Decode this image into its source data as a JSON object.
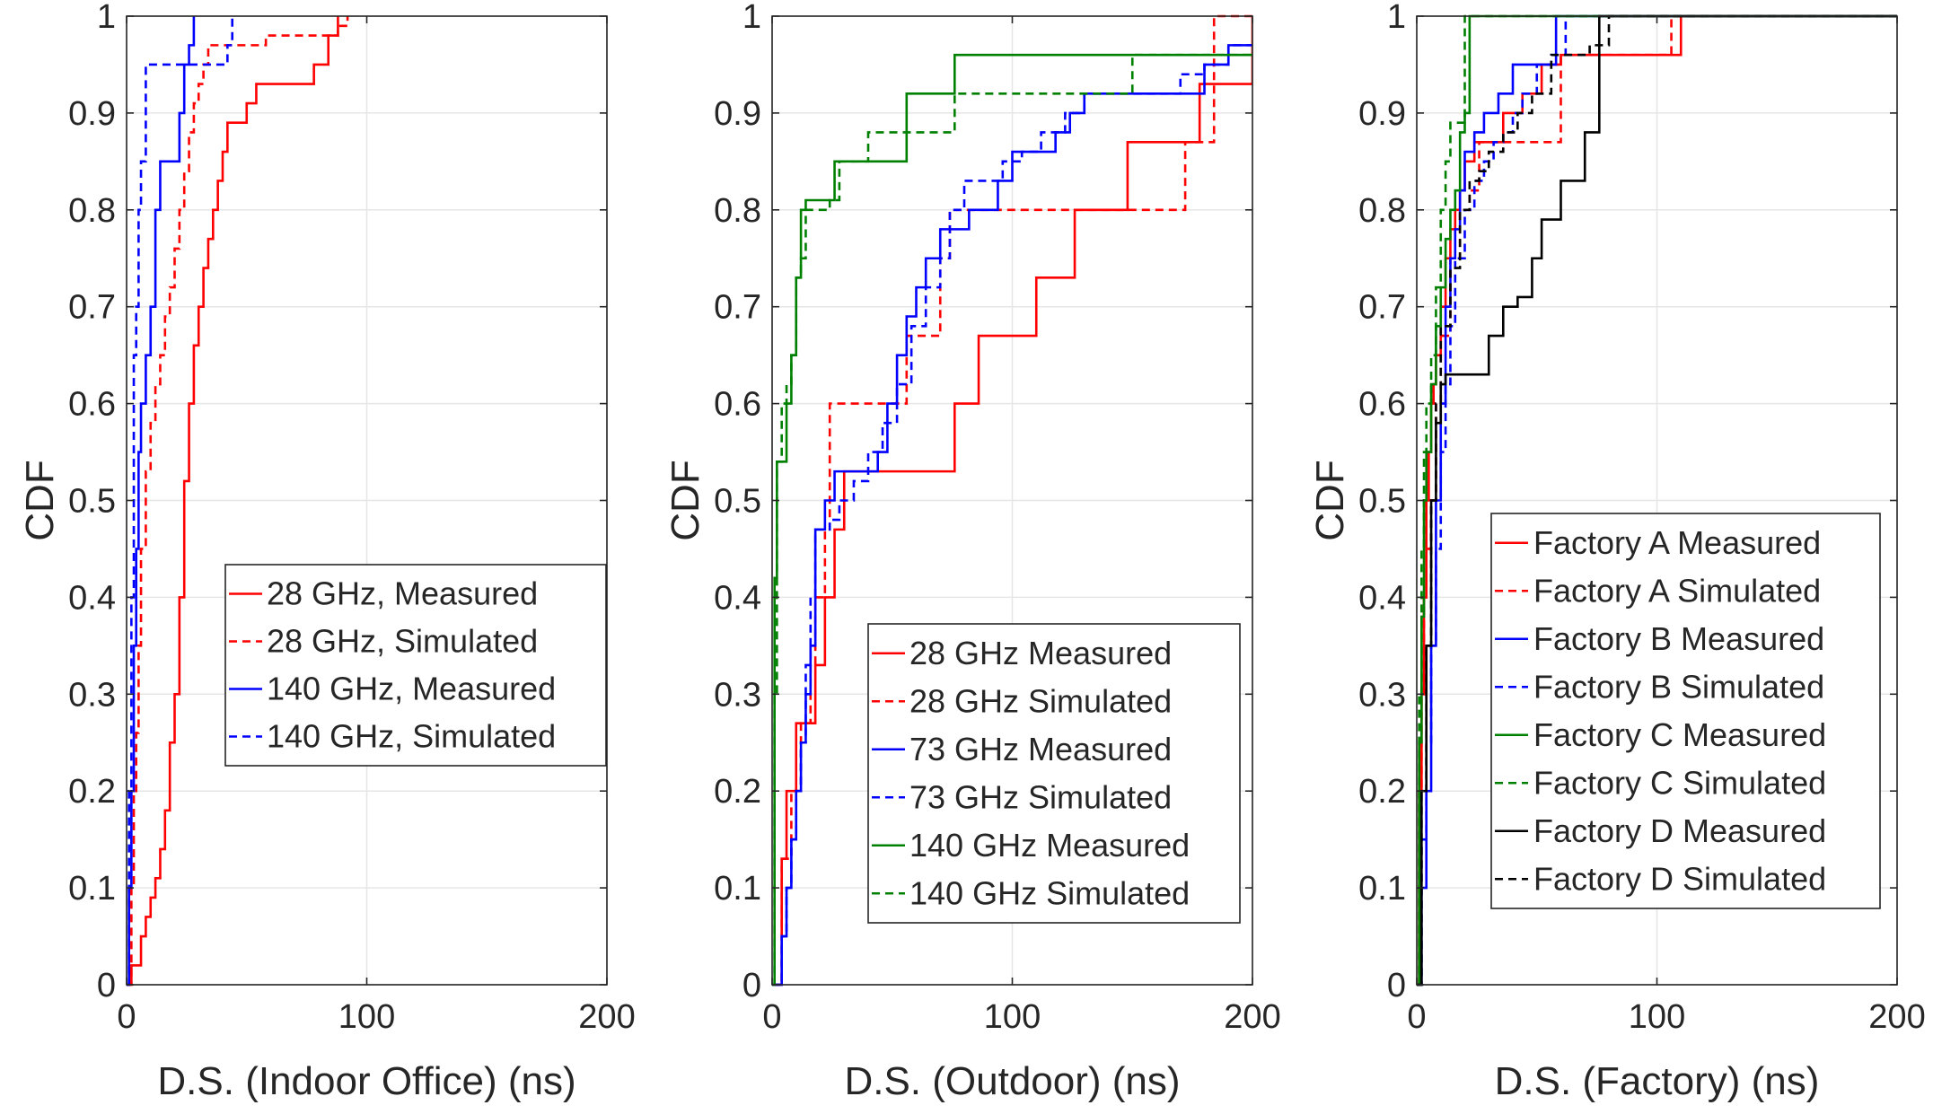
{
  "chart_data": [
    {
      "type": "line",
      "xlabel": "D.S. (Indoor Office) (ns)",
      "ylabel": "CDF",
      "xlim": [
        0,
        200
      ],
      "ylim": [
        0,
        1
      ],
      "xticks": [
        0,
        100,
        200
      ],
      "yticks": [
        0,
        0.1,
        0.2,
        0.3,
        0.4,
        0.5,
        0.6,
        0.7,
        0.8,
        0.9,
        1
      ],
      "grid": true,
      "legend_position": "center-right",
      "series": [
        {
          "name": "28 GHz, Measured",
          "color": "#ff0000",
          "dash": "solid",
          "x": [
            0,
            2,
            6,
            8,
            10,
            12,
            14,
            16,
            18,
            20,
            22,
            24,
            26,
            28,
            30,
            32,
            34,
            36,
            38,
            40,
            42,
            46,
            50,
            54,
            66,
            78,
            84,
            88
          ],
          "y": [
            0,
            0.02,
            0.05,
            0.07,
            0.09,
            0.11,
            0.14,
            0.18,
            0.25,
            0.3,
            0.4,
            0.52,
            0.6,
            0.66,
            0.7,
            0.74,
            0.77,
            0.8,
            0.83,
            0.86,
            0.89,
            0.89,
            0.91,
            0.93,
            0.93,
            0.95,
            0.98,
            1.0
          ]
        },
        {
          "name": "28 GHz, Simulated",
          "color": "#ff0000",
          "dash": "dashed",
          "x": [
            0,
            2,
            3,
            4,
            5,
            6,
            8,
            10,
            12,
            14,
            16,
            18,
            20,
            22,
            24,
            26,
            28,
            30,
            32,
            34,
            36,
            44,
            58,
            76,
            88,
            92
          ],
          "y": [
            0,
            0.1,
            0.2,
            0.26,
            0.35,
            0.45,
            0.53,
            0.58,
            0.62,
            0.65,
            0.69,
            0.72,
            0.76,
            0.8,
            0.84,
            0.88,
            0.91,
            0.93,
            0.95,
            0.97,
            0.97,
            0.97,
            0.98,
            0.98,
            0.99,
            1.0
          ]
        },
        {
          "name": "140 GHz, Measured",
          "color": "#0000ff",
          "dash": "solid",
          "x": [
            0,
            1,
            2,
            3,
            4,
            5,
            6,
            8,
            10,
            12,
            14,
            16,
            18,
            22,
            24,
            26,
            28
          ],
          "y": [
            0,
            0.1,
            0.2,
            0.35,
            0.45,
            0.55,
            0.6,
            0.65,
            0.7,
            0.8,
            0.85,
            0.85,
            0.85,
            0.9,
            0.95,
            0.97,
            1.0
          ]
        },
        {
          "name": "140 GHz, Simulated",
          "color": "#0000ff",
          "dash": "dashed",
          "x": [
            0,
            1,
            2,
            3,
            4,
            5,
            6,
            8,
            10,
            42,
            44
          ],
          "y": [
            0,
            0.2,
            0.4,
            0.65,
            0.7,
            0.8,
            0.85,
            0.95,
            0.95,
            0.97,
            1.0
          ]
        }
      ]
    },
    {
      "type": "line",
      "xlabel": "D.S. (Outdoor) (ns)",
      "ylabel": "CDF",
      "xlim": [
        0,
        200
      ],
      "ylim": [
        0,
        1
      ],
      "xticks": [
        0,
        100,
        200
      ],
      "yticks": [
        0,
        0.1,
        0.2,
        0.3,
        0.4,
        0.5,
        0.6,
        0.7,
        0.8,
        0.9,
        1
      ],
      "grid": true,
      "legend_position": "bottom-right",
      "series": [
        {
          "name": "28 GHz Measured",
          "color": "#ff0000",
          "dash": "solid",
          "x": [
            0,
            4,
            6,
            10,
            14,
            18,
            22,
            26,
            30,
            38,
            48,
            58,
            60,
            66,
            76,
            86,
            96,
            110,
            126,
            148,
            170,
            178,
            198,
            200
          ],
          "y": [
            0,
            0.13,
            0.2,
            0.27,
            0.27,
            0.33,
            0.4,
            0.47,
            0.53,
            0.53,
            0.53,
            0.53,
            0.53,
            0.53,
            0.6,
            0.67,
            0.67,
            0.73,
            0.8,
            0.87,
            0.87,
            0.93,
            0.93,
            1.0
          ]
        },
        {
          "name": "28 GHz Simulated",
          "color": "#ff0000",
          "dash": "dashed",
          "x": [
            0,
            4,
            8,
            12,
            16,
            18,
            22,
            24,
            30,
            40,
            48,
            56,
            60,
            66,
            70,
            74,
            80,
            90,
            110,
            130,
            150,
            168,
            172,
            184,
            192,
            200
          ],
          "y": [
            0,
            0.13,
            0.2,
            0.27,
            0.33,
            0.4,
            0.47,
            0.6,
            0.6,
            0.6,
            0.6,
            0.67,
            0.67,
            0.67,
            0.75,
            0.8,
            0.8,
            0.8,
            0.8,
            0.8,
            0.8,
            0.8,
            0.87,
            1.0,
            1.0,
            1.0
          ]
        },
        {
          "name": "73 GHz Measured",
          "color": "#0000ff",
          "dash": "solid",
          "x": [
            0,
            4,
            6,
            8,
            10,
            12,
            14,
            16,
            18,
            22,
            26,
            30,
            34,
            40,
            44,
            48,
            52,
            56,
            60,
            64,
            70,
            76,
            82,
            88,
            94,
            100,
            106,
            112,
            118,
            124,
            130,
            140,
            150,
            160,
            170,
            180,
            190,
            200
          ],
          "y": [
            0,
            0.05,
            0.1,
            0.15,
            0.2,
            0.25,
            0.3,
            0.35,
            0.47,
            0.5,
            0.53,
            0.53,
            0.53,
            0.53,
            0.55,
            0.6,
            0.65,
            0.69,
            0.72,
            0.75,
            0.78,
            0.78,
            0.8,
            0.8,
            0.83,
            0.86,
            0.86,
            0.86,
            0.88,
            0.9,
            0.92,
            0.92,
            0.92,
            0.92,
            0.92,
            0.95,
            0.97,
            0.97
          ]
        },
        {
          "name": "73 GHz Simulated",
          "color": "#0000ff",
          "dash": "dashed",
          "x": [
            0,
            4,
            6,
            8,
            10,
            12,
            14,
            16,
            18,
            20,
            24,
            28,
            34,
            40,
            46,
            52,
            58,
            64,
            70,
            74,
            80,
            88,
            96,
            104,
            112,
            122,
            130,
            140,
            150,
            160,
            170,
            180,
            190,
            200
          ],
          "y": [
            0,
            0.05,
            0.1,
            0.15,
            0.2,
            0.25,
            0.33,
            0.4,
            0.47,
            0.47,
            0.48,
            0.5,
            0.52,
            0.55,
            0.58,
            0.62,
            0.68,
            0.72,
            0.75,
            0.8,
            0.83,
            0.83,
            0.85,
            0.86,
            0.88,
            0.9,
            0.92,
            0.92,
            0.92,
            0.92,
            0.94,
            0.95,
            0.97,
            0.97
          ]
        },
        {
          "name": "140 GHz Measured",
          "color": "#008000",
          "dash": "solid",
          "x": [
            0,
            1,
            2,
            4,
            6,
            8,
            10,
            12,
            14,
            20,
            26,
            32,
            40,
            48,
            56,
            64,
            76,
            90,
            110,
            140,
            170,
            200
          ],
          "y": [
            0,
            0.42,
            0.54,
            0.54,
            0.6,
            0.65,
            0.73,
            0.8,
            0.81,
            0.81,
            0.85,
            0.85,
            0.85,
            0.85,
            0.92,
            0.92,
            0.96,
            0.96,
            0.96,
            0.96,
            0.96,
            0.96
          ]
        },
        {
          "name": "140 GHz Simulated",
          "color": "#008000",
          "dash": "dashed",
          "x": [
            0,
            1,
            2,
            4,
            6,
            8,
            10,
            12,
            14,
            20,
            24,
            28,
            34,
            40,
            52,
            64,
            76,
            100,
            120,
            150,
            170,
            200
          ],
          "y": [
            0,
            0.3,
            0.54,
            0.6,
            0.62,
            0.65,
            0.73,
            0.75,
            0.8,
            0.8,
            0.81,
            0.85,
            0.85,
            0.88,
            0.88,
            0.88,
            0.92,
            0.92,
            0.92,
            0.96,
            0.96,
            0.96
          ]
        }
      ]
    },
    {
      "type": "line",
      "xlabel": "D.S. (Factory) (ns)",
      "ylabel": "CDF",
      "xlim": [
        0,
        200
      ],
      "ylim": [
        0,
        1
      ],
      "xticks": [
        0,
        100,
        200
      ],
      "yticks": [
        0,
        0.1,
        0.2,
        0.3,
        0.4,
        0.5,
        0.6,
        0.7,
        0.8,
        0.9,
        1
      ],
      "grid": true,
      "legend_position": "center-right",
      "series": [
        {
          "name": "Factory A Measured",
          "color": "#ff0000",
          "dash": "solid",
          "x": [
            0,
            1,
            2,
            3,
            4,
            5,
            6,
            7,
            8,
            10,
            12,
            14,
            16,
            18,
            20,
            24,
            28,
            32,
            36,
            44,
            52,
            60,
            80,
            90,
            100,
            110,
            200
          ],
          "y": [
            0,
            0.2,
            0.3,
            0.4,
            0.5,
            0.55,
            0.6,
            0.62,
            0.65,
            0.7,
            0.75,
            0.78,
            0.8,
            0.82,
            0.85,
            0.87,
            0.87,
            0.87,
            0.9,
            0.92,
            0.95,
            0.96,
            0.96,
            0.96,
            0.96,
            1.0,
            1.0
          ]
        },
        {
          "name": "Factory A Simulated",
          "color": "#ff0000",
          "dash": "dashed",
          "x": [
            0,
            1,
            2,
            3,
            4,
            6,
            8,
            10,
            14,
            18,
            22,
            26,
            30,
            40,
            50,
            60,
            80,
            100,
            106,
            200
          ],
          "y": [
            0,
            0.2,
            0.3,
            0.4,
            0.45,
            0.5,
            0.6,
            0.67,
            0.75,
            0.8,
            0.82,
            0.87,
            0.87,
            0.87,
            0.87,
            0.96,
            0.96,
            0.96,
            1.0,
            1.0
          ]
        },
        {
          "name": "Factory B Measured",
          "color": "#0000ff",
          "dash": "solid",
          "x": [
            0,
            2,
            4,
            6,
            8,
            10,
            12,
            14,
            16,
            18,
            20,
            24,
            28,
            34,
            40,
            46,
            52,
            58,
            200
          ],
          "y": [
            0,
            0.1,
            0.2,
            0.35,
            0.5,
            0.6,
            0.7,
            0.75,
            0.78,
            0.82,
            0.86,
            0.88,
            0.9,
            0.92,
            0.95,
            0.95,
            0.95,
            1.0,
            1.0
          ]
        },
        {
          "name": "Factory B Simulated",
          "color": "#0000ff",
          "dash": "dashed",
          "x": [
            0,
            2,
            4,
            6,
            8,
            10,
            12,
            14,
            16,
            20,
            24,
            28,
            32,
            36,
            40,
            44,
            50,
            56,
            62,
            200
          ],
          "y": [
            0,
            0.15,
            0.25,
            0.35,
            0.45,
            0.55,
            0.62,
            0.68,
            0.75,
            0.8,
            0.83,
            0.85,
            0.87,
            0.88,
            0.9,
            0.92,
            0.95,
            0.96,
            1.0,
            1.0
          ]
        },
        {
          "name": "Factory C Measured",
          "color": "#008000",
          "dash": "solid",
          "x": [
            0,
            1,
            2,
            3,
            4,
            6,
            8,
            10,
            12,
            14,
            16,
            18,
            20,
            22,
            200
          ],
          "y": [
            0,
            0.25,
            0.38,
            0.5,
            0.55,
            0.62,
            0.68,
            0.72,
            0.77,
            0.8,
            0.82,
            0.88,
            0.9,
            1.0,
            1.0
          ]
        },
        {
          "name": "Factory C Simulated",
          "color": "#008000",
          "dash": "dashed",
          "x": [
            0,
            1,
            2,
            3,
            4,
            6,
            8,
            10,
            12,
            14,
            18,
            20,
            200
          ],
          "y": [
            0,
            0.3,
            0.45,
            0.55,
            0.6,
            0.65,
            0.72,
            0.8,
            0.85,
            0.89,
            0.89,
            1.0,
            1.0
          ]
        },
        {
          "name": "Factory D Measured",
          "color": "#000000",
          "dash": "solid",
          "x": [
            0,
            2,
            4,
            6,
            8,
            10,
            12,
            16,
            20,
            26,
            30,
            36,
            42,
            48,
            52,
            60,
            70,
            76,
            200
          ],
          "y": [
            0,
            0.2,
            0.35,
            0.5,
            0.58,
            0.62,
            0.63,
            0.63,
            0.63,
            0.63,
            0.67,
            0.7,
            0.71,
            0.75,
            0.79,
            0.83,
            0.88,
            1.0,
            1.0
          ]
        },
        {
          "name": "Factory D Simulated",
          "color": "#000000",
          "dash": "dashed",
          "x": [
            0,
            2,
            4,
            6,
            8,
            10,
            14,
            18,
            22,
            26,
            30,
            36,
            42,
            48,
            56,
            64,
            72,
            80,
            200
          ],
          "y": [
            0,
            0.2,
            0.35,
            0.5,
            0.6,
            0.68,
            0.74,
            0.8,
            0.83,
            0.84,
            0.86,
            0.88,
            0.9,
            0.92,
            0.96,
            0.96,
            0.97,
            1.0,
            1.0
          ]
        }
      ]
    }
  ]
}
